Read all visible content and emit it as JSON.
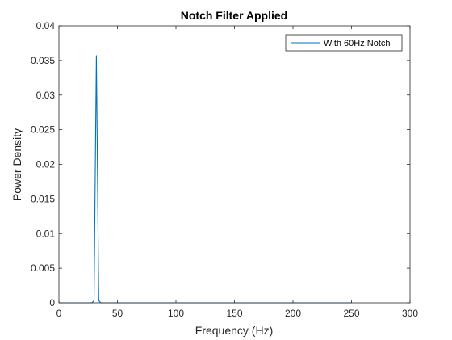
{
  "chart_data": {
    "type": "line",
    "title": "Notch Filter Applied",
    "xlabel": "Frequency (Hz)",
    "ylabel": "Power Density",
    "xlim": [
      0,
      300
    ],
    "ylim": [
      0,
      0.04
    ],
    "xticks": [
      0,
      50,
      100,
      150,
      200,
      250,
      300
    ],
    "xtick_labels": [
      "0",
      "50",
      "100",
      "150",
      "200",
      "250",
      "300"
    ],
    "yticks": [
      0,
      0.005,
      0.01,
      0.015,
      0.02,
      0.025,
      0.03,
      0.035,
      0.04
    ],
    "ytick_labels": [
      "0",
      "0.005",
      "0.01",
      "0.015",
      "0.02",
      "0.025",
      "0.03",
      "0.035",
      "0.04"
    ],
    "grid": false,
    "legend_position": "top-right",
    "series": [
      {
        "name": "With 60Hz Notch",
        "color": "#0072bd",
        "x": [
          0,
          28,
          30,
          32,
          34,
          36,
          250
        ],
        "y": [
          0,
          0,
          0.0003,
          0.0357,
          0.0003,
          0,
          0
        ]
      }
    ]
  }
}
